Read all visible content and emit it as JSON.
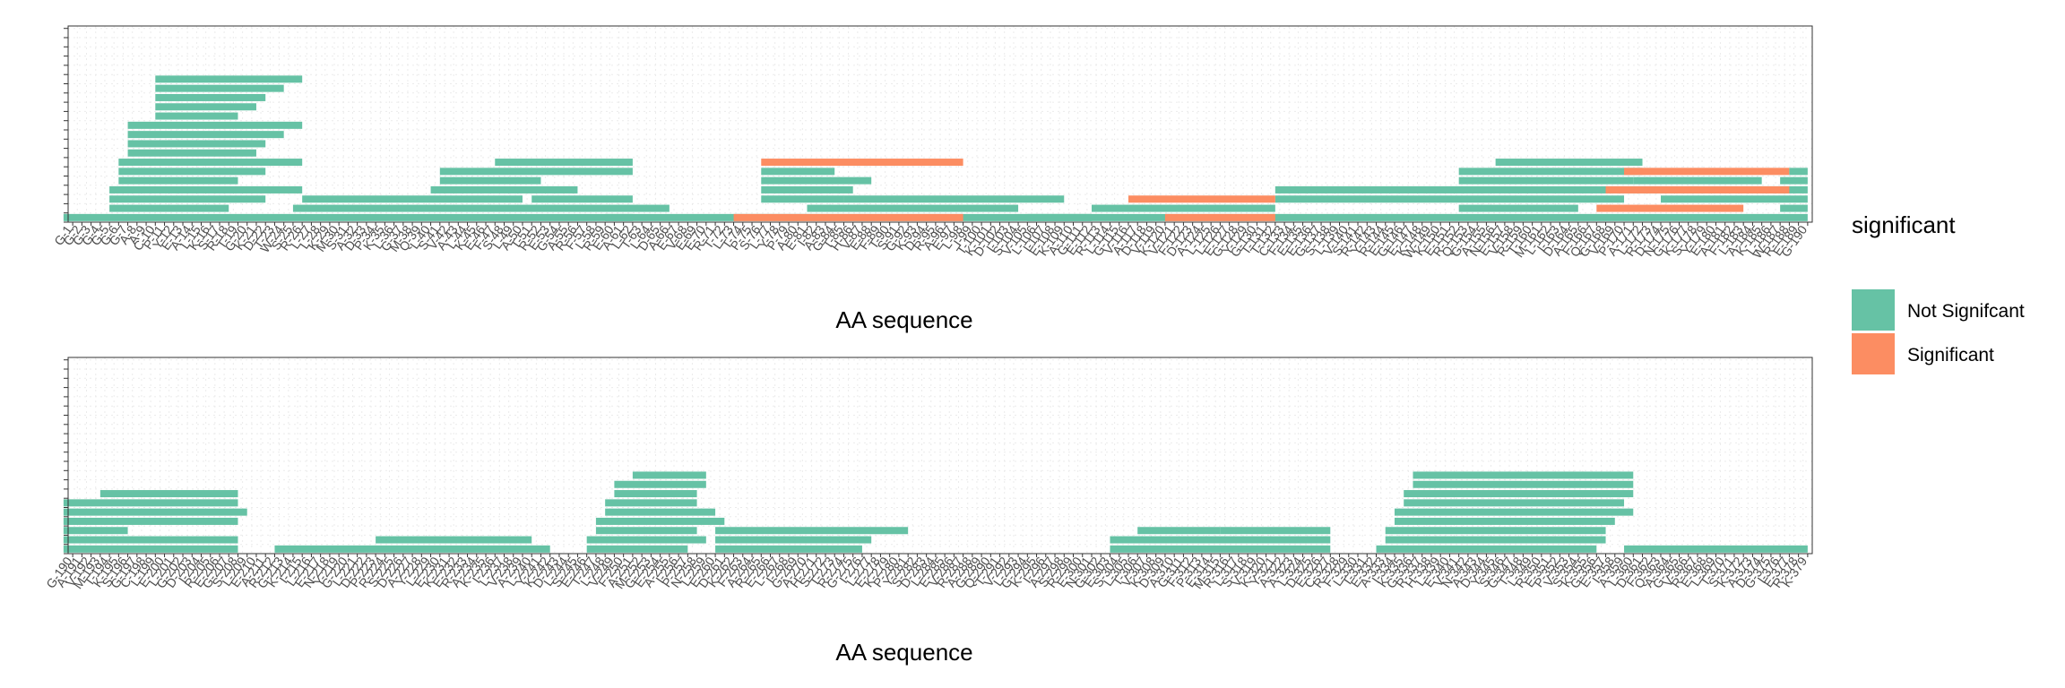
{
  "chart_data": [
    {
      "type": "bar",
      "panel": "top",
      "xlabel": "AA sequence",
      "x_range": [
        1,
        190
      ],
      "y_range": [
        0,
        22
      ],
      "grid": "dotted",
      "tick_labels": [
        "G-1",
        "G-2",
        "G-3",
        "G-4",
        "G-5",
        "G-6",
        "G-7",
        "A-8",
        "A-9",
        "C-10",
        "P-11",
        "Y-12",
        "E-13",
        "A-14",
        "L-15",
        "K-16",
        "S-17",
        "R-18",
        "T-19",
        "G-20",
        "K-21",
        "D-22",
        "T-23",
        "W-24",
        "S-25",
        "R-26",
        "L-27",
        "L-28",
        "K-29",
        "M-30",
        "S-31",
        "A-32",
        "D-33",
        "P-34",
        "K-35",
        "L-36",
        "G-37",
        "M-38",
        "Q-39",
        "L-40",
        "S-41",
        "V-42",
        "A-43",
        "L-44",
        "K-45",
        "E-46",
        "F-47",
        "S-48",
        "L-49",
        "A-50",
        "T-51",
        "R-52",
        "E-53",
        "G-54",
        "A-55",
        "R-56",
        "F-57",
        "L-58",
        "R-59",
        "E-60",
        "A-61",
        "L-62",
        "T-63",
        "L-64",
        "D-65",
        "A-66",
        "E-67",
        "V-68",
        "E-69",
        "E-70",
        "R-71",
        "T-72",
        "L-73",
        "T-74",
        "P-75",
        "S-76",
        "L-77",
        "Y-78",
        "P-79",
        "A-80",
        "E-81",
        "I-82",
        "A-83",
        "G-84",
        "T-85",
        "H-86",
        "V-87",
        "E-88",
        "F-89",
        "T-90",
        "S-91",
        "G-92",
        "K-93",
        "D-94",
        "R-95",
        "A-96",
        "E-97",
        "L-98",
        "I-99",
        "T-100",
        "K-101",
        "D-102",
        "I-103",
        "S-104",
        "V-105",
        "L-106",
        "I-107",
        "E-108",
        "K-109",
        "A-110",
        "G-111",
        "E-112",
        "R-113",
        "L-114",
        "G-115",
        "V-116",
        "A-117",
        "D-118",
        "V-119",
        "K-120",
        "V-121",
        "F-122",
        "D-123",
        "A-124",
        "L-125",
        "L-126",
        "E-127",
        "G-128",
        "Y-129",
        "G-130",
        "T-131",
        "T-132",
        "C-133",
        "F-134",
        "E-135",
        "E-136",
        "G-137",
        "S-138",
        "L-139",
        "V-140",
        "S-141",
        "R-142",
        "Y-143",
        "R-144",
        "E-145",
        "G-146",
        "E-147",
        "K-148",
        "W-149",
        "K-150",
        "E-151",
        "R-152",
        "Q-153",
        "G-154",
        "A-155",
        "N-156",
        "E-157",
        "V-158",
        "R-159",
        "T-160",
        "M-161",
        "L-162",
        "I-163",
        "D-164",
        "A-165",
        "F-166",
        "Q-167",
        "G-168",
        "V-169",
        "P-170",
        "A-171",
        "L-172",
        "R-173",
        "D-174",
        "N-175",
        "G-176",
        "K-177",
        "S-178",
        "Y-179",
        "E-180",
        "A-181",
        "F-182",
        "L-183",
        "A-184",
        "K-185",
        "L-186",
        "W-187",
        "R-188",
        "E-189",
        "G-190"
      ],
      "series": [
        {
          "name": "Not Signifcant",
          "color": "#66C2A5"
        },
        {
          "name": "Significant",
          "color": "#FC8D62"
        }
      ],
      "bars": [
        {
          "start": 1,
          "end": 62,
          "row": 1,
          "sig": false
        },
        {
          "start": 60,
          "end": 112,
          "row": 1,
          "sig": false
        },
        {
          "start": 106,
          "end": 190,
          "row": 1,
          "sig": false
        },
        {
          "start": 74,
          "end": 98,
          "row": 1,
          "sig": true
        },
        {
          "start": 121,
          "end": 132,
          "row": 1,
          "sig": true
        },
        {
          "start": 6,
          "end": 18,
          "row": 2,
          "sig": false
        },
        {
          "start": 26,
          "end": 66,
          "row": 2,
          "sig": false
        },
        {
          "start": 82,
          "end": 104,
          "row": 2,
          "sig": false
        },
        {
          "start": 113,
          "end": 132,
          "row": 2,
          "sig": false
        },
        {
          "start": 153,
          "end": 165,
          "row": 2,
          "sig": false
        },
        {
          "start": 188,
          "end": 190,
          "row": 2,
          "sig": false
        },
        {
          "start": 168,
          "end": 183,
          "row": 2,
          "sig": true
        },
        {
          "start": 6,
          "end": 22,
          "row": 3,
          "sig": false
        },
        {
          "start": 27,
          "end": 50,
          "row": 3,
          "sig": false
        },
        {
          "start": 52,
          "end": 62,
          "row": 3,
          "sig": false
        },
        {
          "start": 77,
          "end": 85,
          "row": 3,
          "sig": false
        },
        {
          "start": 86,
          "end": 109,
          "row": 3,
          "sig": false
        },
        {
          "start": 133,
          "end": 170,
          "row": 3,
          "sig": false
        },
        {
          "start": 175,
          "end": 190,
          "row": 3,
          "sig": false
        },
        {
          "start": 117,
          "end": 132,
          "row": 3,
          "sig": true
        },
        {
          "start": 6,
          "end": 26,
          "row": 4,
          "sig": false
        },
        {
          "start": 41,
          "end": 56,
          "row": 4,
          "sig": false
        },
        {
          "start": 77,
          "end": 86,
          "row": 4,
          "sig": false
        },
        {
          "start": 133,
          "end": 170,
          "row": 4,
          "sig": false
        },
        {
          "start": 171,
          "end": 178,
          "row": 4,
          "sig": false
        },
        {
          "start": 178,
          "end": 188,
          "row": 4,
          "sig": false
        },
        {
          "start": 188,
          "end": 190,
          "row": 4,
          "sig": false
        },
        {
          "start": 169,
          "end": 188,
          "row": 4,
          "sig": true
        },
        {
          "start": 7,
          "end": 19,
          "row": 5,
          "sig": false
        },
        {
          "start": 42,
          "end": 52,
          "row": 5,
          "sig": false
        },
        {
          "start": 77,
          "end": 88,
          "row": 5,
          "sig": false
        },
        {
          "start": 153,
          "end": 171,
          "row": 5,
          "sig": false
        },
        {
          "start": 172,
          "end": 185,
          "row": 5,
          "sig": false
        },
        {
          "start": 188,
          "end": 190,
          "row": 5,
          "sig": false
        },
        {
          "start": 7,
          "end": 22,
          "row": 6,
          "sig": false
        },
        {
          "start": 42,
          "end": 62,
          "row": 6,
          "sig": false
        },
        {
          "start": 77,
          "end": 84,
          "row": 6,
          "sig": false
        },
        {
          "start": 153,
          "end": 172,
          "row": 6,
          "sig": false
        },
        {
          "start": 171,
          "end": 188,
          "row": 6,
          "sig": true
        },
        {
          "start": 189,
          "end": 190,
          "row": 6,
          "sig": false
        },
        {
          "start": 7,
          "end": 26,
          "row": 7,
          "sig": false
        },
        {
          "start": 48,
          "end": 62,
          "row": 7,
          "sig": false
        },
        {
          "start": 157,
          "end": 172,
          "row": 7,
          "sig": false
        },
        {
          "start": 77,
          "end": 98,
          "row": 7,
          "sig": true
        },
        {
          "start": 8,
          "end": 21,
          "row": 8,
          "sig": false
        },
        {
          "start": 8,
          "end": 22,
          "row": 9,
          "sig": false
        },
        {
          "start": 8,
          "end": 24,
          "row": 10,
          "sig": false
        },
        {
          "start": 8,
          "end": 26,
          "row": 11,
          "sig": false
        },
        {
          "start": 11,
          "end": 19,
          "row": 12,
          "sig": false
        },
        {
          "start": 11,
          "end": 21,
          "row": 13,
          "sig": false
        },
        {
          "start": 11,
          "end": 22,
          "row": 14,
          "sig": false
        },
        {
          "start": 11,
          "end": 24,
          "row": 15,
          "sig": false
        },
        {
          "start": 11,
          "end": 26,
          "row": 16,
          "sig": false
        }
      ]
    },
    {
      "type": "bar",
      "panel": "bottom",
      "xlabel": "AA sequence",
      "x_range": [
        190,
        379
      ],
      "y_range": [
        0,
        22
      ],
      "grid": "dotted",
      "tick_labels": [
        "G-190",
        "A-191",
        "V-192",
        "M-193",
        "T-194",
        "K-195",
        "S-196",
        "G-197",
        "C-198",
        "L-199",
        "E-200",
        "L-201",
        "G-202",
        "D-203",
        "I-204",
        "R-205",
        "E-206",
        "G-207",
        "S-208",
        "L-209",
        "E-210",
        "A-211",
        "R-212",
        "G-213",
        "K-214",
        "I-215",
        "L-216",
        "E-217",
        "N-218",
        "Y-219",
        "G-220",
        "L-221",
        "D-222",
        "P-223",
        "R-224",
        "S-225",
        "D-226",
        "A-227",
        "Y-228",
        "L-229",
        "E-230",
        "K-231",
        "E-232",
        "R-233",
        "A-234",
        "K-235",
        "I-236",
        "L-237",
        "V-238",
        "A-239",
        "L-240",
        "Y-241",
        "K-242",
        "D-243",
        "L-244",
        "S-245",
        "E-246",
        "T-247",
        "L-248",
        "V-249",
        "F-250",
        "A-251",
        "M-252",
        "G-253",
        "E-254",
        "A-255",
        "I-256",
        "P-257",
        "N-258",
        "L-259",
        "E-260",
        "D-261",
        "K-262",
        "F-263",
        "A-264",
        "R-265",
        "E-266",
        "L-267",
        "I-268",
        "G-269",
        "A-270",
        "H-271",
        "S-272",
        "T-273",
        "R-274",
        "G-275",
        "I-276",
        "L-277",
        "E-278",
        "K-279",
        "P-280",
        "Y-281",
        "S-282",
        "D-283",
        "L-284",
        "E-285",
        "V-286",
        "R-287",
        "A-288",
        "G-289",
        "Q-290",
        "T-291",
        "V-292",
        "L-293",
        "G-294",
        "K-295",
        "I-296",
        "A-297",
        "S-298",
        "R-299",
        "E-300",
        "N-301",
        "G-302",
        "E-303",
        "S-304",
        "L-305",
        "T-306",
        "V-307",
        "K-308",
        "D-309",
        "A-310",
        "G-311",
        "F-312",
        "P-313",
        "E-314",
        "M-315",
        "R-316",
        "L-317",
        "S-318",
        "V-319",
        "K-320",
        "Y-321",
        "A-322",
        "A-323",
        "L-324",
        "D-325",
        "E-326",
        "C-327",
        "R-328",
        "F-329",
        "L-330",
        "T-331",
        "E-332",
        "A-333",
        "I-334",
        "K-335",
        "G-336",
        "R-337",
        "H-338",
        "L-339",
        "E-340",
        "V-341",
        "N-342",
        "A-343",
        "D-344",
        "Y-345",
        "S-346",
        "G-347",
        "T-348",
        "L-349",
        "R-350",
        "E-351",
        "P-352",
        "V-353",
        "S-354",
        "K-355",
        "G-356",
        "E-357",
        "I-358",
        "A-359",
        "L-360",
        "D-361",
        "F-362",
        "Q-363",
        "A-364",
        "G-365",
        "V-366",
        "R-367",
        "E-368",
        "L-369",
        "T-370",
        "S-371",
        "K-372",
        "A-373",
        "D-374",
        "G-375",
        "I-376",
        "E-377",
        "R-378",
        "K-379"
      ],
      "series": [
        {
          "name": "Not Signifcant",
          "color": "#66C2A5"
        },
        {
          "name": "Significant",
          "color": "#FC8D62"
        }
      ],
      "bars": [
        {
          "start": 190,
          "end": 208,
          "row": 1,
          "sig": false
        },
        {
          "start": 213,
          "end": 242,
          "row": 1,
          "sig": false
        },
        {
          "start": 247,
          "end": 257,
          "row": 1,
          "sig": false
        },
        {
          "start": 261,
          "end": 276,
          "row": 1,
          "sig": false
        },
        {
          "start": 304,
          "end": 327,
          "row": 1,
          "sig": false
        },
        {
          "start": 333,
          "end": 356,
          "row": 1,
          "sig": false
        },
        {
          "start": 360,
          "end": 379,
          "row": 1,
          "sig": false
        },
        {
          "start": 190,
          "end": 208,
          "row": 2,
          "sig": false
        },
        {
          "start": 224,
          "end": 240,
          "row": 2,
          "sig": false
        },
        {
          "start": 247,
          "end": 259,
          "row": 2,
          "sig": false
        },
        {
          "start": 261,
          "end": 277,
          "row": 2,
          "sig": false
        },
        {
          "start": 304,
          "end": 327,
          "row": 2,
          "sig": false
        },
        {
          "start": 334,
          "end": 357,
          "row": 2,
          "sig": false
        },
        {
          "start": 190,
          "end": 196,
          "row": 3,
          "sig": false
        },
        {
          "start": 248,
          "end": 258,
          "row": 3,
          "sig": false
        },
        {
          "start": 261,
          "end": 281,
          "row": 3,
          "sig": false
        },
        {
          "start": 307,
          "end": 315,
          "row": 3,
          "sig": false
        },
        {
          "start": 316,
          "end": 327,
          "row": 3,
          "sig": false
        },
        {
          "start": 334,
          "end": 357,
          "row": 3,
          "sig": false
        },
        {
          "start": 190,
          "end": 208,
          "row": 4,
          "sig": false
        },
        {
          "start": 248,
          "end": 261,
          "row": 4,
          "sig": false
        },
        {
          "start": 335,
          "end": 358,
          "row": 4,
          "sig": false
        },
        {
          "start": 190,
          "end": 209,
          "row": 5,
          "sig": false
        },
        {
          "start": 249,
          "end": 260,
          "row": 5,
          "sig": false
        },
        {
          "start": 335,
          "end": 360,
          "row": 5,
          "sig": false
        },
        {
          "start": 190,
          "end": 208,
          "row": 6,
          "sig": false
        },
        {
          "start": 249,
          "end": 258,
          "row": 6,
          "sig": false
        },
        {
          "start": 336,
          "end": 359,
          "row": 6,
          "sig": false
        },
        {
          "start": 194,
          "end": 208,
          "row": 7,
          "sig": false
        },
        {
          "start": 250,
          "end": 258,
          "row": 7,
          "sig": false
        },
        {
          "start": 336,
          "end": 360,
          "row": 7,
          "sig": false
        },
        {
          "start": 250,
          "end": 259,
          "row": 8,
          "sig": false
        },
        {
          "start": 337,
          "end": 360,
          "row": 8,
          "sig": false
        },
        {
          "start": 252,
          "end": 259,
          "row": 9,
          "sig": false
        },
        {
          "start": 337,
          "end": 360,
          "row": 9,
          "sig": false
        }
      ]
    }
  ],
  "legend": {
    "title": "significant",
    "position": "right",
    "items": [
      {
        "label": "Not Signifcant",
        "color": "#66C2A5"
      },
      {
        "label": "Significant",
        "color": "#FC8D62"
      }
    ]
  }
}
